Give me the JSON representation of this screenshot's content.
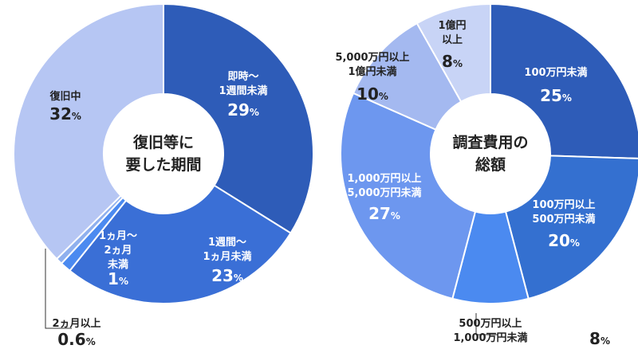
{
  "chart_data": [
    {
      "type": "pie",
      "title": "復旧等に要した期間",
      "center_lines": [
        "復旧等に",
        "要した期間"
      ],
      "slices": [
        {
          "lines": [
            "即時～",
            "1週間未満"
          ],
          "value": 29,
          "unit": "%",
          "color": "#2e5cb8",
          "text_color": "#ffffff"
        },
        {
          "lines": [
            "1週間～",
            "1ヵ月未満"
          ],
          "value": 23,
          "unit": "%",
          "color": "#3a6fd6",
          "text_color": "#ffffff"
        },
        {
          "lines": [
            "1ヵ月～",
            "2ヵ月",
            "未満"
          ],
          "value": 1,
          "unit": "%",
          "color": "#4b8af0",
          "text_color": "#ffffff"
        },
        {
          "lines": [
            "2ヵ月以上"
          ],
          "value": 0.6,
          "unit": "%",
          "color": "#8fb0ee",
          "text_color": "#222222"
        },
        {
          "lines": [
            "復旧中"
          ],
          "value": 32,
          "unit": "%",
          "color": "#b6c6f3",
          "text_color": "#222222"
        }
      ]
    },
    {
      "type": "pie",
      "title": "調査費用の総額",
      "center_lines": [
        "調査費用の",
        "総額"
      ],
      "slices": [
        {
          "lines": [
            "100万円未満"
          ],
          "value": 25,
          "unit": "%",
          "color": "#2e5cb8",
          "text_color": "#ffffff"
        },
        {
          "lines": [
            "100万円以上",
            "500万円未満"
          ],
          "value": 20,
          "unit": "%",
          "color": "#3470d0",
          "text_color": "#ffffff"
        },
        {
          "lines": [
            "500万円以上",
            "1,000万円未満"
          ],
          "value": 8,
          "unit": "%",
          "color": "#4b8af0",
          "text_color": "#222222"
        },
        {
          "lines": [
            "1,000万円以上",
            "5,000万円未満"
          ],
          "value": 27,
          "unit": "%",
          "color": "#6d97ef",
          "text_color": "#ffffff"
        },
        {
          "lines": [
            "5,000万円以上",
            "1億円未満"
          ],
          "value": 10,
          "unit": "%",
          "color": "#a4b9f0",
          "text_color": "#222222"
        },
        {
          "lines": [
            "1億円",
            "以上"
          ],
          "value": 8,
          "unit": "%",
          "color": "#c8d4f6",
          "text_color": "#222222"
        }
      ]
    }
  ]
}
